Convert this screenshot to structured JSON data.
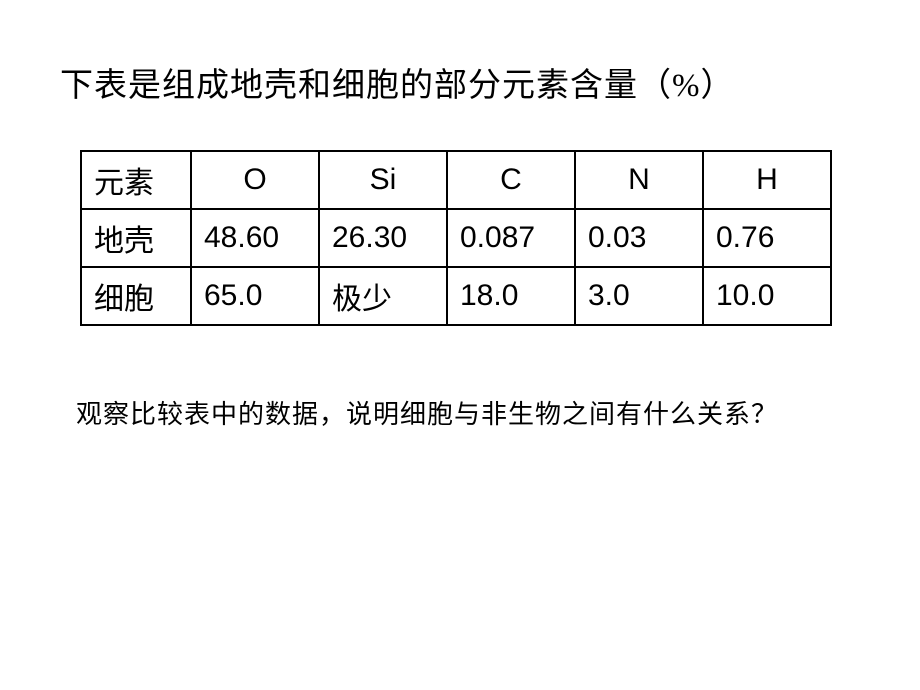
{
  "title": "下表是组成地壳和细胞的部分元素含量（%）",
  "table": {
    "header": {
      "label": "元素",
      "columns": [
        "O",
        "Si",
        "C",
        "N",
        "H"
      ]
    },
    "rows": [
      {
        "label": "地壳",
        "values": [
          "48.60",
          "26.30",
          "0.087",
          "0.03",
          "0.76"
        ]
      },
      {
        "label": "细胞",
        "values": [
          "65.0",
          "极少",
          "18.0",
          "3.0",
          "10.0"
        ]
      }
    ],
    "border_color": "#000000",
    "background_color": "#ffffff",
    "font_size": 30,
    "col_label_width": 110,
    "col_data_width": 128
  },
  "question": "观察比较表中的数据，说明细胞与非生物之间有什么关系？",
  "colors": {
    "text": "#000000",
    "background": "#ffffff"
  },
  "typography": {
    "title_fontsize": 33,
    "table_fontsize": 30,
    "question_fontsize": 26,
    "font_family": "SimSun"
  }
}
